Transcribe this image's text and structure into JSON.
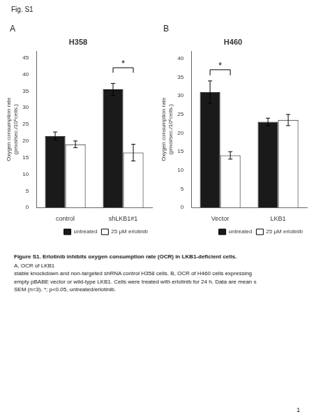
{
  "fig_label": "Fig. S1",
  "chart_data": [
    {
      "type": "bar",
      "panel_label": "A",
      "title": "H358",
      "ylabel": "Oxygen consumption rate\n(pmol/sec./10⁶cells.)",
      "categories": [
        "control",
        "shLKB1#1"
      ],
      "series": [
        {
          "name": "untreated",
          "color": "#1a1a1a",
          "values": [
            21.5,
            35.5
          ],
          "errors": [
            1.2,
            1.8
          ]
        },
        {
          "name": "25 μM erlotinib",
          "color": "#ffffff",
          "values": [
            19.0,
            16.5
          ],
          "errors": [
            1.0,
            2.5
          ]
        }
      ],
      "ylim": [
        0,
        47
      ],
      "yticks": [
        0,
        5,
        10,
        15,
        20,
        25,
        30,
        35,
        40,
        45
      ],
      "grid": false,
      "legend": "lower right",
      "annotations": [
        {
          "text": "*",
          "category": "shLKB1#1",
          "y": 42,
          "bracket_drop": 1.5
        }
      ]
    },
    {
      "type": "bar",
      "panel_label": "B",
      "title": "H460",
      "ylabel": "Oxygen consumption rate\n(pmol/sec./10⁶cells.)",
      "categories": [
        "Vector",
        "LKB1"
      ],
      "series": [
        {
          "name": "untreated",
          "color": "#1a1a1a",
          "values": [
            31.0,
            23.0
          ],
          "errors": [
            3.0,
            1.0
          ]
        },
        {
          "name": "25 μM erlotinib",
          "color": "#ffffff",
          "values": [
            14.0,
            23.5
          ],
          "errors": [
            1.0,
            1.5
          ]
        }
      ],
      "ylim": [
        0,
        42
      ],
      "yticks": [
        0,
        5,
        10,
        15,
        20,
        25,
        30,
        35,
        40
      ],
      "grid": false,
      "legend": "lower right",
      "annotations": [
        {
          "text": "*",
          "category": "Vector",
          "y": 37,
          "bracket_drop": 1.5
        }
      ]
    }
  ],
  "caption_bold": "Figure S1. Erlotinib inhibits oxygen consumption rate (OCR) in LKB1-deficient cells.",
  "caption": "A, OCR of LKB1\nstable knockdown and non-targeted shRNA control H358 cells. B, OCR of H460 cells expressing\nempty pBABE vector or wild-type LKB1. Cells were treated with erlotinib for 24 h. Data are mean ±\nSEM (n=3). *; p<0.05, untreated/erlotinib.",
  "page_number": "1"
}
